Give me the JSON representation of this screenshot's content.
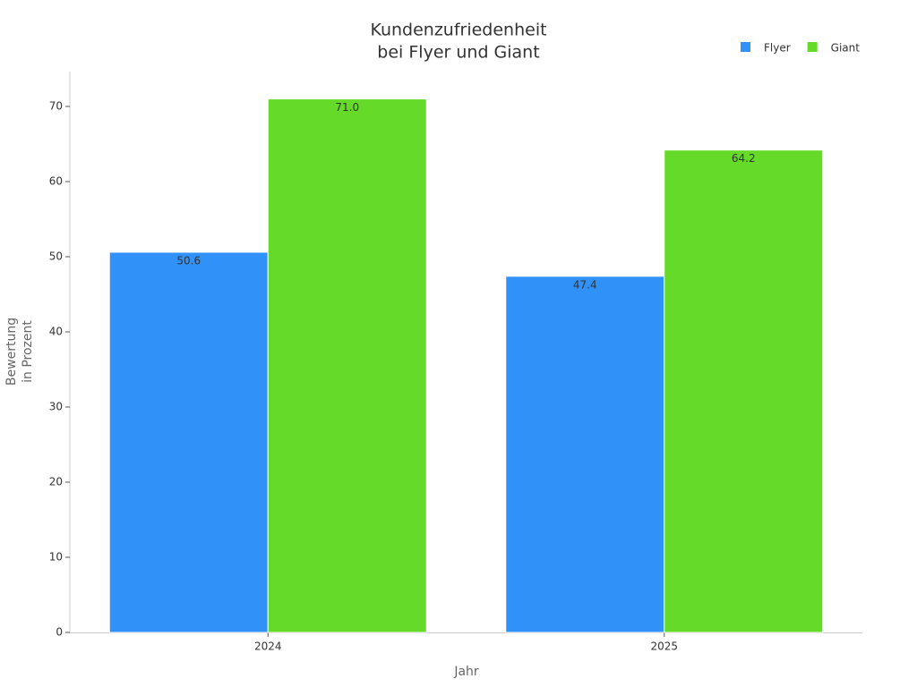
{
  "chart_data": {
    "type": "bar",
    "title": [
      "Kundenzufriedenheit",
      "bei Flyer und Giant"
    ],
    "x_label": "Jahr",
    "y_label": [
      "Bewertung",
      "in Prozent"
    ],
    "categories": [
      "2024",
      "2025"
    ],
    "series": [
      {
        "name": "Flyer",
        "color": "#3092f8",
        "values": [
          50.6,
          47.4
        ],
        "value_labels": [
          "50.6",
          "47.4"
        ]
      },
      {
        "name": "Giant",
        "color": "#66da29",
        "values": [
          71.0,
          64.2
        ],
        "value_labels": [
          "71.0",
          "64.2"
        ]
      }
    ],
    "ylim": [
      0,
      75
    ],
    "yticks": [
      0,
      10,
      20,
      30,
      40,
      50,
      60,
      70
    ],
    "legend": "top-right",
    "grid": false
  }
}
